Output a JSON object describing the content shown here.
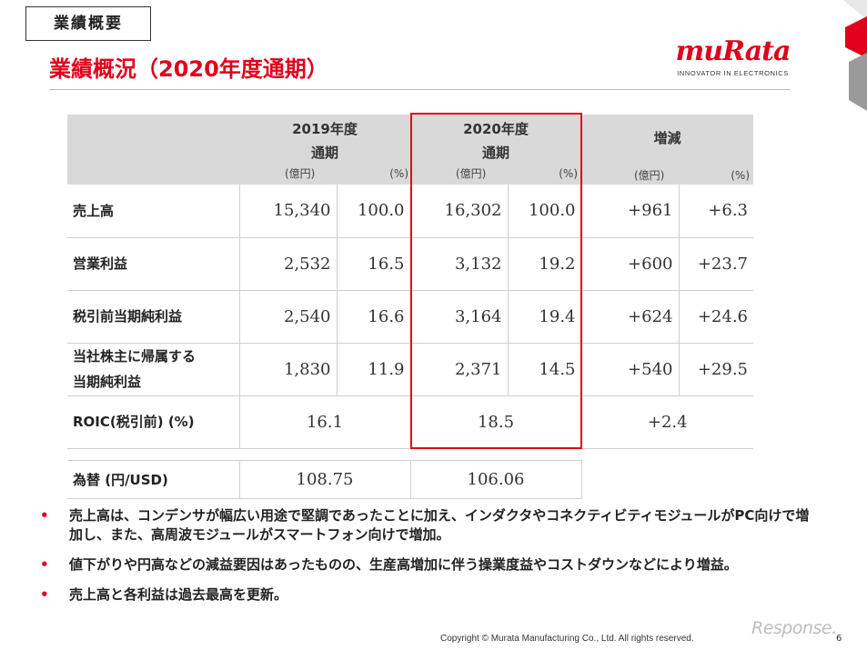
{
  "section_tag": "業績概要",
  "title": "業績概況（2020年度通期）",
  "logo": {
    "wordmark": "muRata",
    "tagline": "INNOVATOR IN ELECTRONICS"
  },
  "table": {
    "header": {
      "y2019": {
        "year": "2019年度",
        "period": "通期",
        "unit_oku": "(億円)",
        "unit_pct": "(%)"
      },
      "y2020": {
        "year": "2020年度",
        "period": "通期",
        "unit_oku": "(億円)",
        "unit_pct": "(%)"
      },
      "change": {
        "label": "増減",
        "unit_oku": "(億円)",
        "unit_pct": "(%)"
      }
    },
    "rows": [
      {
        "label": "売上高",
        "v2019": "15,340",
        "p2019": "100.0",
        "v2020": "16,302",
        "p2020": "100.0",
        "dv": "+961",
        "dp": "+6.3"
      },
      {
        "label": "営業利益",
        "v2019": "2,532",
        "p2019": "16.5",
        "v2020": "3,132",
        "p2020": "19.2",
        "dv": "+600",
        "dp": "+23.7"
      },
      {
        "label": "税引前当期純利益",
        "v2019": "2,540",
        "p2019": "16.6",
        "v2020": "3,164",
        "p2020": "19.4",
        "dv": "+624",
        "dp": "+24.6"
      },
      {
        "label_line1": "当社株主に帰属する",
        "label_line2": "当期純利益",
        "v2019": "1,830",
        "p2019": "11.9",
        "v2020": "2,371",
        "p2020": "14.5",
        "dv": "+540",
        "dp": "+29.5"
      }
    ],
    "roic": {
      "label": "ROIC(税引前) (%)",
      "v2019": "16.1",
      "v2020": "18.5",
      "change": "+2.4"
    }
  },
  "fx": {
    "label": "為替 (円/USD)",
    "v2019": "108.75",
    "v2020": "106.06"
  },
  "bullets": [
    {
      "mark": "•",
      "text": "売上高は、コンデンサが幅広い用途で堅調であったことに加え、インダクタやコネクティビティモジュールがPC向けで増加し、また、高周波モジュールがスマートフォン向けで増加。"
    },
    {
      "mark": "•",
      "text": "値下がりや円高などの減益要因はあったものの、生産高増加に伴う操業度益やコストダウンなどにより増益。"
    },
    {
      "mark": "•",
      "text": "売上高と各利益は過去最高を更新。"
    }
  ],
  "footer": {
    "copyright": "Copyright © Murata Manufacturing Co., Ltd. All rights reserved.",
    "page": "6",
    "watermark": "Response."
  },
  "colors": {
    "accent": "#e0001b",
    "header_bg": "#d9d9d9"
  }
}
